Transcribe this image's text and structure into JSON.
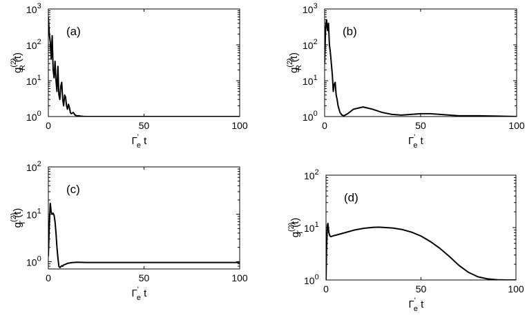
{
  "chart_data": [
    {
      "type": "line",
      "panel_label": "(a)",
      "ylabel": {
        "base": "g",
        "sup": "(2)",
        "sub": "R",
        "arg": "(t)"
      },
      "xlabel": {
        "base": "Γ",
        "prime": "'",
        "sub": "e",
        "rest": " t"
      },
      "xlim": [
        0,
        100
      ],
      "ylim": [
        1,
        1000
      ],
      "yscale": "log",
      "xticks": [
        {
          "value": 0,
          "label": "0"
        },
        {
          "value": 50,
          "label": "50"
        },
        {
          "value": 100,
          "label": "100"
        }
      ],
      "yticks": [
        {
          "value": 1,
          "base": "10",
          "exp": "0"
        },
        {
          "value": 10,
          "base": "10",
          "exp": "1"
        },
        {
          "value": 100,
          "base": "10",
          "exp": "2"
        },
        {
          "value": 1000,
          "base": "10",
          "exp": "3"
        }
      ],
      "series": [
        {
          "x": [
            0,
            0.5,
            1,
            1.5,
            2,
            2.5,
            3,
            3.5,
            4,
            4.5,
            5,
            5.5,
            6,
            6.5,
            7,
            7.5,
            8,
            8.5,
            9,
            9.5,
            10,
            10.5,
            11,
            11.5,
            12,
            13,
            14,
            15,
            16,
            17,
            18,
            20,
            25,
            30,
            40,
            50,
            60,
            70,
            80,
            90,
            100
          ],
          "y": [
            600,
            200,
            120,
            40,
            180,
            20,
            12,
            35,
            10,
            5,
            25,
            4,
            3,
            7,
            9,
            3,
            2,
            4,
            3.5,
            2,
            1.6,
            2.2,
            1.8,
            1.3,
            1.2,
            1.3,
            1.1,
            1.05,
            1.05,
            1.02,
            1.01,
            1,
            1,
            1,
            1,
            1,
            1,
            1,
            1,
            1,
            1
          ]
        }
      ]
    },
    {
      "type": "line",
      "panel_label": "(b)",
      "ylabel": {
        "base": "g",
        "sup": "(2)",
        "sub": "R",
        "arg": "(t)"
      },
      "xlabel": {
        "base": "Γ",
        "prime": "'",
        "sub": "e",
        "rest": " t"
      },
      "xlim": [
        0,
        100
      ],
      "ylim": [
        1,
        1000
      ],
      "yscale": "log",
      "xticks": [
        {
          "value": 0,
          "label": "0"
        },
        {
          "value": 50,
          "label": "50"
        },
        {
          "value": 100,
          "label": "100"
        }
      ],
      "yticks": [
        {
          "value": 1,
          "base": "10",
          "exp": "0"
        },
        {
          "value": 10,
          "base": "10",
          "exp": "1"
        },
        {
          "value": 100,
          "base": "10",
          "exp": "2"
        },
        {
          "value": 1000,
          "base": "10",
          "exp": "3"
        }
      ],
      "series": [
        {
          "x": [
            0,
            0.5,
            1,
            1.5,
            2,
            2.5,
            3,
            3.5,
            4,
            4.5,
            5,
            5.5,
            6,
            6.5,
            7,
            8,
            9,
            10,
            12,
            15,
            20,
            25,
            30,
            35,
            40,
            45,
            50,
            55,
            60,
            65,
            70,
            80,
            90,
            100
          ],
          "y": [
            30,
            300,
            500,
            250,
            400,
            100,
            60,
            30,
            15,
            5,
            8,
            9,
            4,
            3,
            2,
            1.3,
            1.1,
            1.05,
            1.2,
            1.6,
            1.85,
            1.6,
            1.3,
            1.15,
            1.1,
            1.15,
            1.2,
            1.2,
            1.15,
            1.1,
            1.05,
            1.05,
            1.03,
            1
          ]
        }
      ]
    },
    {
      "type": "line",
      "panel_label": "(c)",
      "ylabel": {
        "base": "g",
        "sup": "(2)",
        "sub": "T",
        "arg": "(t)"
      },
      "xlabel": {
        "base": "Γ",
        "prime": "'",
        "sub": "e",
        "rest": " t"
      },
      "xlim": [
        0,
        100
      ],
      "ylim": [
        0.7,
        100
      ],
      "yscale": "log",
      "xticks": [
        {
          "value": 0,
          "label": "0"
        },
        {
          "value": 50,
          "label": "50"
        },
        {
          "value": 100,
          "label": "100"
        }
      ],
      "yticks": [
        {
          "value": 1,
          "base": "10",
          "exp": "0"
        },
        {
          "value": 10,
          "base": "10",
          "exp": "1"
        },
        {
          "value": 100,
          "base": "10",
          "exp": "2"
        }
      ],
      "series": [
        {
          "x": [
            0,
            0.5,
            1,
            1.5,
            2,
            2.5,
            3,
            3.5,
            4,
            4.5,
            5,
            5.5,
            6,
            6.5,
            7,
            7.5,
            8,
            9,
            10,
            12,
            15,
            20,
            30,
            40,
            50,
            60,
            70,
            80,
            90,
            100
          ],
          "y": [
            1.3,
            6,
            17,
            11,
            10,
            10.5,
            9.5,
            7,
            4,
            2,
            1.2,
            0.8,
            0.75,
            0.78,
            0.82,
            0.8,
            0.85,
            0.88,
            0.92,
            0.95,
            0.97,
            0.96,
            0.96,
            0.96,
            0.96,
            0.96,
            0.96,
            0.96,
            0.96,
            0.96
          ]
        }
      ]
    },
    {
      "type": "line",
      "panel_label": "(d)",
      "ylabel": {
        "base": "g",
        "sup": "(2)",
        "sub": "T",
        "arg": "(t)"
      },
      "xlabel": {
        "base": "Γ",
        "prime": "'",
        "sub": "e",
        "rest": " t"
      },
      "xlim": [
        0,
        100
      ],
      "ylim": [
        1,
        100
      ],
      "yscale": "log",
      "xticks": [
        {
          "value": 0,
          "label": "0"
        },
        {
          "value": 50,
          "label": "50"
        },
        {
          "value": 100,
          "label": "100"
        }
      ],
      "yticks": [
        {
          "value": 1,
          "base": "10",
          "exp": "0"
        },
        {
          "value": 10,
          "base": "10",
          "exp": "1"
        },
        {
          "value": 100,
          "base": "10",
          "exp": "2"
        }
      ],
      "series": [
        {
          "x": [
            0,
            0.3,
            0.7,
            1,
            1.5,
            2,
            2.5,
            3,
            4,
            6,
            10,
            15,
            20,
            25,
            28,
            35,
            40,
            45,
            50,
            55,
            60,
            65,
            70,
            75,
            80,
            85,
            90,
            95,
            100
          ],
          "y": [
            1,
            4,
            11,
            12,
            8,
            7,
            6.7,
            6.8,
            7,
            7.3,
            8,
            9,
            9.7,
            10.1,
            10.2,
            9.8,
            9.2,
            8.2,
            6.9,
            5.4,
            4,
            2.8,
            1.9,
            1.4,
            1.15,
            1.05,
            1.01,
            1,
            1
          ]
        }
      ]
    }
  ]
}
